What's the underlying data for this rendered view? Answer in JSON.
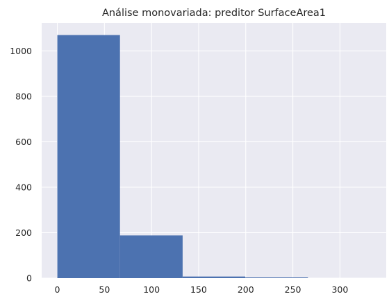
{
  "chart_data": {
    "type": "bar",
    "title": "Análise monovariada: preditor SurfaceArea1",
    "xlabel": "",
    "ylabel": "",
    "bins": [
      {
        "start": 0,
        "end": 66.5,
        "count": 1070
      },
      {
        "start": 66.5,
        "end": 133,
        "count": 188
      },
      {
        "start": 133,
        "end": 199.5,
        "count": 7
      },
      {
        "start": 199.5,
        "end": 266,
        "count": 3
      },
      {
        "start": 266,
        "end": 332.5,
        "count": 0
      }
    ],
    "xlim": [
      -16.6,
      349.1
    ],
    "ylim": [
      0,
      1123.5
    ],
    "xticks": [
      0,
      50,
      100,
      150,
      200,
      250,
      300
    ],
    "yticks": [
      0,
      200,
      400,
      600,
      800,
      1000
    ],
    "grid": true,
    "legend": "none",
    "colors": {
      "bar": "#4c72b0",
      "plot_background": "#eaeaf2",
      "grid": "#ffffff",
      "text": "#262626"
    }
  }
}
